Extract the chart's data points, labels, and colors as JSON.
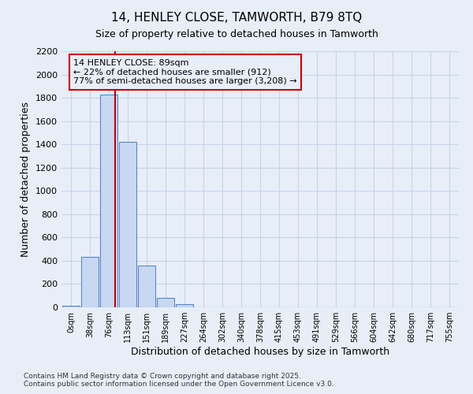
{
  "title_line1": "14, HENLEY CLOSE, TAMWORTH, B79 8TQ",
  "title_line2": "Size of property relative to detached houses in Tamworth",
  "xlabel": "Distribution of detached houses by size in Tamworth",
  "ylabel": "Number of detached properties",
  "annotation_line1": "14 HENLEY CLOSE: 89sqm",
  "annotation_line2": "← 22% of detached houses are smaller (912)",
  "annotation_line3": "77% of semi-detached houses are larger (3,208) →",
  "footer_line1": "Contains HM Land Registry data © Crown copyright and database right 2025.",
  "footer_line2": "Contains public sector information licensed under the Open Government Licence v3.0.",
  "bin_labels": [
    "0sqm",
    "38sqm",
    "76sqm",
    "113sqm",
    "151sqm",
    "189sqm",
    "227sqm",
    "264sqm",
    "302sqm",
    "340sqm",
    "378sqm",
    "415sqm",
    "453sqm",
    "491sqm",
    "529sqm",
    "566sqm",
    "604sqm",
    "642sqm",
    "680sqm",
    "717sqm",
    "755sqm"
  ],
  "bar_values": [
    15,
    430,
    1830,
    1420,
    360,
    80,
    30,
    0,
    0,
    0,
    0,
    0,
    0,
    0,
    0,
    0,
    0,
    0,
    0,
    0,
    0
  ],
  "bar_color": "#c8d8f0",
  "bar_edge_color": "#5588cc",
  "vline_x": 2.35,
  "vline_color": "#cc0000",
  "ylim": [
    0,
    2200
  ],
  "yticks": [
    0,
    200,
    400,
    600,
    800,
    1000,
    1200,
    1400,
    1600,
    1800,
    2000,
    2200
  ],
  "grid_color": "#c8d4e8",
  "annotation_box_edge_color": "#cc0000",
  "background_color": "#ffffff",
  "fig_background": "#e8eef8"
}
